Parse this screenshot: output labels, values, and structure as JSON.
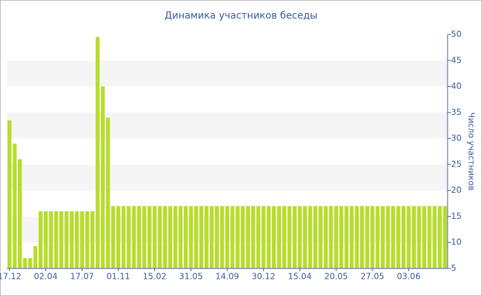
{
  "chart_data": {
    "type": "bar",
    "title": "Динамика участников беседы",
    "y_label": "Число участников",
    "categories": [
      "17.12",
      null,
      null,
      null,
      null,
      null,
      null,
      "02.04",
      null,
      null,
      null,
      null,
      null,
      null,
      "17.07",
      null,
      null,
      null,
      null,
      null,
      null,
      "01.11",
      null,
      null,
      null,
      null,
      null,
      null,
      "15.02",
      null,
      null,
      null,
      null,
      null,
      null,
      "31.05",
      null,
      null,
      null,
      null,
      null,
      null,
      "14.09",
      null,
      null,
      null,
      null,
      null,
      null,
      "30.12",
      null,
      null,
      null,
      null,
      null,
      null,
      "15.04",
      null,
      null,
      null,
      null,
      null,
      null,
      "20.05",
      null,
      null,
      null,
      null,
      null,
      null,
      "27.05",
      null,
      null,
      null,
      null,
      null,
      null,
      "03.06",
      null,
      null,
      null,
      null,
      null,
      null,
      null
    ],
    "values": [
      33.5,
      29,
      26,
      7,
      7,
      9.3,
      16,
      16,
      16,
      16,
      16,
      16,
      16,
      16,
      16,
      16,
      16,
      49.5,
      40,
      34,
      17,
      17,
      17,
      17,
      17,
      17,
      17,
      17,
      17,
      17,
      17,
      17,
      17,
      17,
      17,
      17,
      17,
      17,
      17,
      17,
      17,
      17,
      17,
      17,
      17,
      17,
      17,
      17,
      17,
      17,
      17,
      17,
      17,
      17,
      17,
      17,
      17,
      17,
      17,
      17,
      17,
      17,
      17,
      17,
      17,
      17,
      17,
      17,
      17,
      17,
      17,
      17,
      17,
      17,
      17,
      17,
      17,
      17,
      17,
      17,
      17,
      17,
      17,
      17,
      17
    ],
    "color": "#b8dc2c",
    "ylim": [
      5,
      50
    ],
    "yticks": [
      5,
      10,
      15,
      20,
      25,
      30,
      35,
      40,
      45,
      50
    ],
    "grid": true,
    "y_axis_side": "right"
  }
}
